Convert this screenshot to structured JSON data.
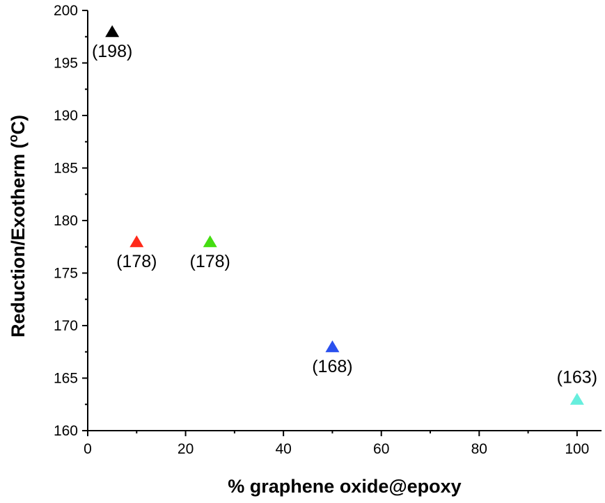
{
  "chart_data": {
    "type": "scatter",
    "title": "",
    "xlabel": "% graphene oxide@epoxy",
    "ylabel_main": "Reduction/Exotherm (",
    "ylabel_sup": "o",
    "ylabel_end": "C)",
    "xlim": [
      0,
      105
    ],
    "ylim": [
      160,
      200
    ],
    "x_ticks": [
      0,
      20,
      40,
      60,
      80,
      100
    ],
    "y_ticks": [
      160,
      165,
      170,
      175,
      180,
      185,
      190,
      195,
      200
    ],
    "grid": false,
    "legend": "none",
    "marker": "triangle",
    "points": [
      {
        "x": 5,
        "y": 198,
        "label": "(198)",
        "color": "#000000",
        "label_position": "below"
      },
      {
        "x": 10,
        "y": 178,
        "label": "(178)",
        "color": "#ff2a1a",
        "label_position": "below"
      },
      {
        "x": 25,
        "y": 178,
        "label": "(178)",
        "color": "#44dd11",
        "label_position": "below"
      },
      {
        "x": 50,
        "y": 168,
        "label": "(168)",
        "color": "#2a50ee",
        "label_position": "below"
      },
      {
        "x": 100,
        "y": 163,
        "label": "(163)",
        "color": "#66eedd",
        "label_position": "above"
      }
    ]
  }
}
